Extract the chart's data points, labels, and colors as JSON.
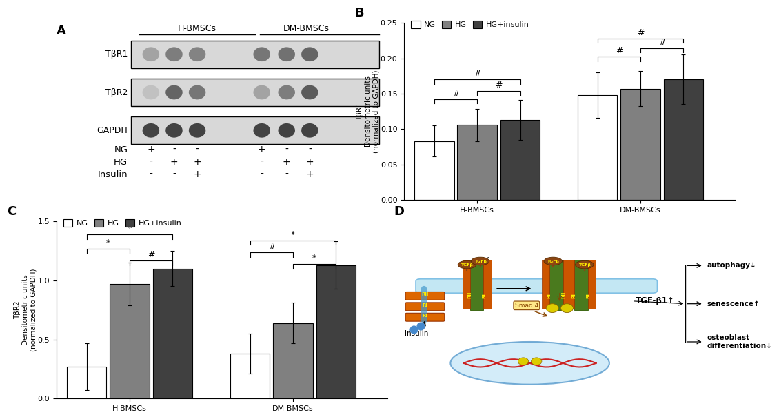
{
  "panel_B": {
    "groups": [
      "H-BMSCs",
      "DM-BMSCs"
    ],
    "conditions": [
      "NG",
      "HG",
      "HG+insulin"
    ],
    "bar_colors": [
      "white",
      "#808080",
      "#404040"
    ],
    "values": [
      [
        0.083,
        0.106,
        0.113
      ],
      [
        0.148,
        0.157,
        0.17
      ]
    ],
    "errors": [
      [
        0.022,
        0.023,
        0.028
      ],
      [
        0.032,
        0.025,
        0.035
      ]
    ],
    "ylim": [
      0,
      0.25
    ],
    "yticks": [
      0.0,
      0.05,
      0.1,
      0.15,
      0.2,
      0.25
    ],
    "ylabel": "TβR1\nDensitometric units\n(normalized to GAPDH)"
  },
  "panel_C": {
    "groups": [
      "H-BMSCs",
      "DM-BMSCs"
    ],
    "conditions": [
      "NG",
      "HG",
      "HG+insulin"
    ],
    "bar_colors": [
      "white",
      "#808080",
      "#404040"
    ],
    "values": [
      [
        0.27,
        0.97,
        1.1
      ],
      [
        0.38,
        0.64,
        1.13
      ]
    ],
    "errors": [
      [
        0.2,
        0.18,
        0.15
      ],
      [
        0.17,
        0.17,
        0.2
      ]
    ],
    "ylim": [
      0,
      1.5
    ],
    "yticks": [
      0.0,
      0.5,
      1.0,
      1.5
    ],
    "ylabel": "TβR2\nDensitometric units\n(normalized to GAPDH)"
  }
}
